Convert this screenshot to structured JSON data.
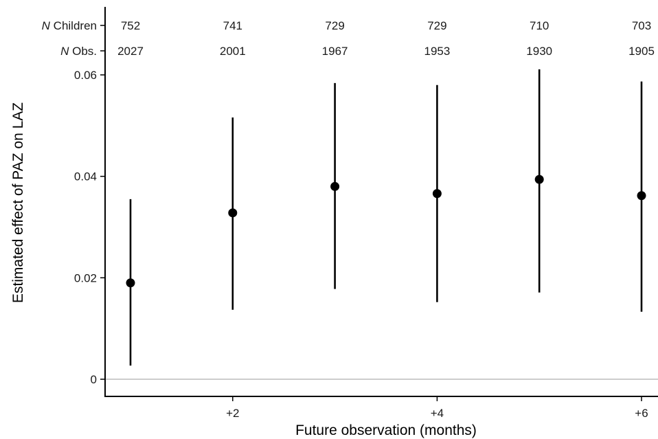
{
  "chart_data": {
    "type": "scatter",
    "subtype": "point-range",
    "title": "",
    "xlabel": "Future observation (months)",
    "ylabel": "Estimated effect of PAZ on LAZ",
    "x": [
      1,
      2,
      3,
      4,
      5,
      6
    ],
    "x_tick_values": [
      2,
      4,
      6
    ],
    "x_tick_labels": [
      "+2",
      "+4",
      "+6"
    ],
    "ylim": [
      0,
      0.06
    ],
    "y_tick_values": [
      0,
      0.02,
      0.04,
      0.06
    ],
    "y_tick_labels": [
      "0",
      "0.02",
      "0.04",
      "0.06"
    ],
    "reference_line_y": 0,
    "grid": false,
    "estimate": [
      0.019,
      0.0328,
      0.038,
      0.0366,
      0.0394,
      0.0362
    ],
    "ci_lower": [
      0.0027,
      0.0137,
      0.0178,
      0.0152,
      0.0171,
      0.0133
    ],
    "ci_upper": [
      0.0355,
      0.0516,
      0.0584,
      0.058,
      0.0611,
      0.0587
    ],
    "count_rows": [
      {
        "label_italic": "N",
        "label_rest": " Children",
        "values": [
          "752",
          "741",
          "729",
          "729",
          "710",
          "703"
        ]
      },
      {
        "label_italic": "N",
        "label_rest": " Obs.",
        "values": [
          "2027",
          "2001",
          "1967",
          "1953",
          "1930",
          "1905"
        ]
      }
    ]
  }
}
